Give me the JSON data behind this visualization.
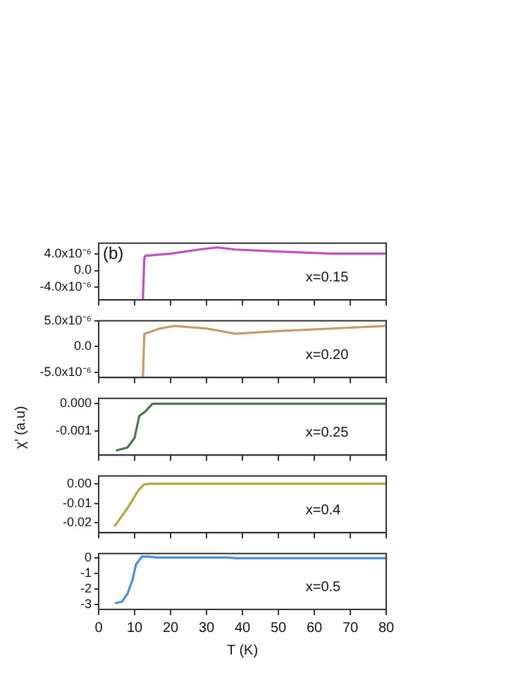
{
  "chart_data": [
    {
      "type": "line",
      "title": "(b)",
      "annotations": [
        "x=0.15"
      ],
      "xlim": [
        0,
        80
      ],
      "xticks": [
        0,
        10,
        20,
        30,
        40,
        50,
        60,
        70,
        80
      ],
      "tick_labels": "y",
      "ylim": [
        -7e-06,
        6.5e-06
      ],
      "yticks": [
        {
          "value": -4e-06,
          "label": "-4.0x10⁻⁶"
        },
        {
          "value": 0,
          "label": "0.0"
        },
        {
          "value": 4e-06,
          "label": "4.0x10⁻⁶"
        }
      ],
      "series": [
        {
          "color": "#c050c0",
          "x": [
            12.3,
            12.7,
            13,
            20,
            28,
            33,
            38,
            50,
            65,
            80
          ],
          "values": [
            -7e-06,
            3e-06,
            3.5e-06,
            4e-06,
            5e-06,
            5.5e-06,
            5e-06,
            4.5e-06,
            4e-06,
            4e-06
          ]
        }
      ]
    },
    {
      "type": "line",
      "annotations": [
        "x=0.20"
      ],
      "xlim": [
        0,
        80
      ],
      "xticks": [
        0,
        10,
        20,
        30,
        40,
        50,
        60,
        70,
        80
      ],
      "tick_labels": "y",
      "ylim": [
        -6e-06,
        5e-06
      ],
      "yticks": [
        {
          "value": -5e-06,
          "label": "-5.0x10⁻⁶"
        },
        {
          "value": 0,
          "label": "0.0"
        },
        {
          "value": 5e-06,
          "label": "5.0x10⁻⁶"
        }
      ],
      "series": [
        {
          "color": "#c89a68",
          "x": [
            12.3,
            12.7,
            13,
            17,
            21,
            30,
            38,
            50,
            65,
            80
          ],
          "values": [
            -6e-06,
            2.5e-06,
            2.5e-06,
            3.5e-06,
            4e-06,
            3.5e-06,
            2.5e-06,
            3e-06,
            3.5e-06,
            4e-06
          ]
        }
      ]
    },
    {
      "type": "line",
      "annotations": [
        "x=0.25"
      ],
      "ylabel": "χ' (a.u)",
      "xlim": [
        0,
        80
      ],
      "xticks": [
        0,
        10,
        20,
        30,
        40,
        50,
        60,
        70,
        80
      ],
      "tick_labels": "y",
      "ylim": [
        -0.0019,
        0.0002
      ],
      "yticks": [
        {
          "value": -0.001,
          "label": "-0.001"
        },
        {
          "value": 0,
          "label": "0.000"
        }
      ],
      "series": [
        {
          "color": "#4a7a4a",
          "x": [
            4.8,
            8,
            10,
            11.3,
            13,
            15,
            80
          ],
          "values": [
            -0.00173,
            -0.00162,
            -0.00126,
            -0.00045,
            -0.00028,
            0,
            0
          ]
        }
      ]
    },
    {
      "type": "line",
      "annotations": [
        "x=0.4"
      ],
      "xlim": [
        0,
        80
      ],
      "xticks": [
        0,
        10,
        20,
        30,
        40,
        50,
        60,
        70,
        80
      ],
      "tick_labels": "y",
      "ylim": [
        -0.025,
        0.004
      ],
      "yticks": [
        {
          "value": -0.02,
          "label": "-0.02"
        },
        {
          "value": -0.01,
          "label": "-0.01"
        },
        {
          "value": 0,
          "label": "0.00"
        }
      ],
      "series": [
        {
          "color": "#b0a840",
          "x": [
            4.4,
            8,
            11,
            12.5,
            14,
            80
          ],
          "values": [
            -0.0218,
            -0.0125,
            -0.0035,
            -0.0005,
            0,
            0
          ]
        }
      ]
    },
    {
      "type": "line",
      "annotations": [
        "x=0.5"
      ],
      "xlabel": "T (K)",
      "xlim": [
        0,
        80
      ],
      "xticks": [
        0,
        10,
        20,
        30,
        40,
        50,
        60,
        70,
        80
      ],
      "ylim": [
        -3.3,
        0.3
      ],
      "yticks": [
        -3,
        -2,
        -1,
        0
      ],
      "series": [
        {
          "color": "#4a90e0",
          "x": [
            4.5,
            6.5,
            8,
            9.4,
            10.4,
            12,
            14,
            16,
            36,
            38,
            80
          ],
          "values": [
            -2.9,
            -2.8,
            -2.3,
            -1.4,
            -0.4,
            0.1,
            0.1,
            0.05,
            0.05,
            0,
            0
          ]
        }
      ]
    }
  ]
}
